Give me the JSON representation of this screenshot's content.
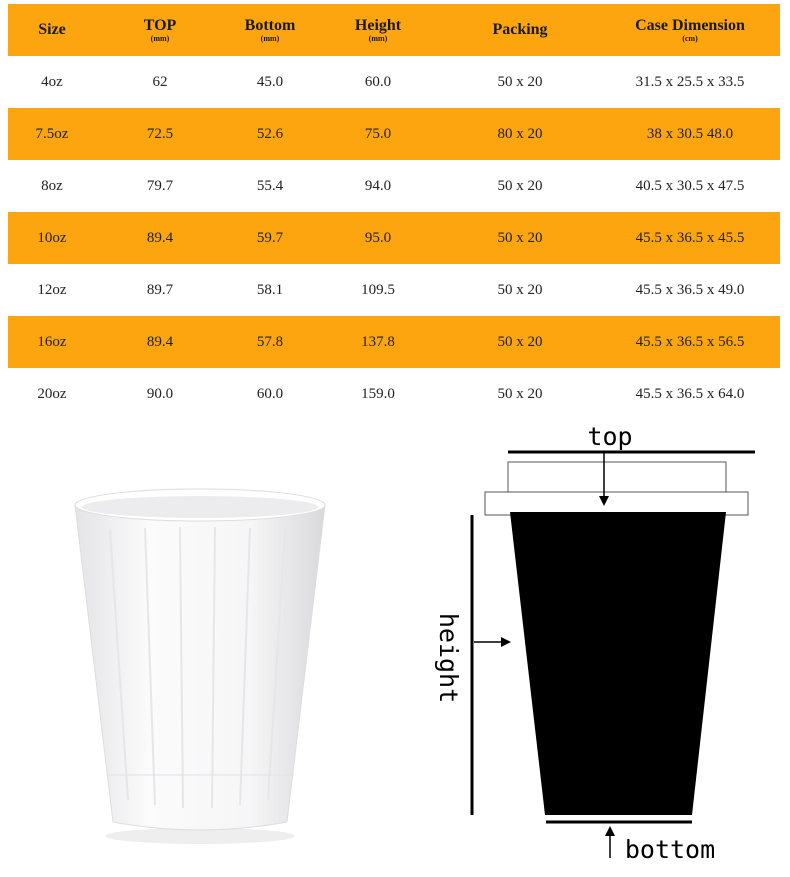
{
  "table": {
    "headers": [
      {
        "label": "Size"
      },
      {
        "label": "TOP",
        "unit": "(mm)"
      },
      {
        "label": "Bottom",
        "unit": "(mm)"
      },
      {
        "label": "Height",
        "unit": "(mm)"
      },
      {
        "label": "Packing"
      },
      {
        "label": "Case Dimension",
        "unit": "(cm)"
      }
    ],
    "rows": [
      [
        "4oz",
        "62",
        "45.0",
        "60.0",
        "50 x 20",
        "31.5 x 25.5 x 33.5"
      ],
      [
        "7.5oz",
        "72.5",
        "52.6",
        "75.0",
        "80 x 20",
        "38 x 30.5 48.0"
      ],
      [
        "8oz",
        "79.7",
        "55.4",
        "94.0",
        "50 x 20",
        "40.5 x 30.5 x 47.5"
      ],
      [
        "10oz",
        "89.4",
        "59.7",
        "95.0",
        "50 x 20",
        "45.5 x 36.5 x 45.5"
      ],
      [
        "12oz",
        "89.7",
        "58.1",
        "109.5",
        "50 x 20",
        "45.5 x 36.5 x 49.0"
      ],
      [
        "16oz",
        "89.4",
        "57.8",
        "137.8",
        "50 x 20",
        "45.5 x 36.5 x 56.5"
      ],
      [
        "20oz",
        "90.0",
        "60.0",
        "159.0",
        "50 x 20",
        "45.5 x 36.5 x 64.0"
      ]
    ]
  },
  "diagram": {
    "top": "top",
    "height": "height",
    "bottom": "bottom"
  }
}
